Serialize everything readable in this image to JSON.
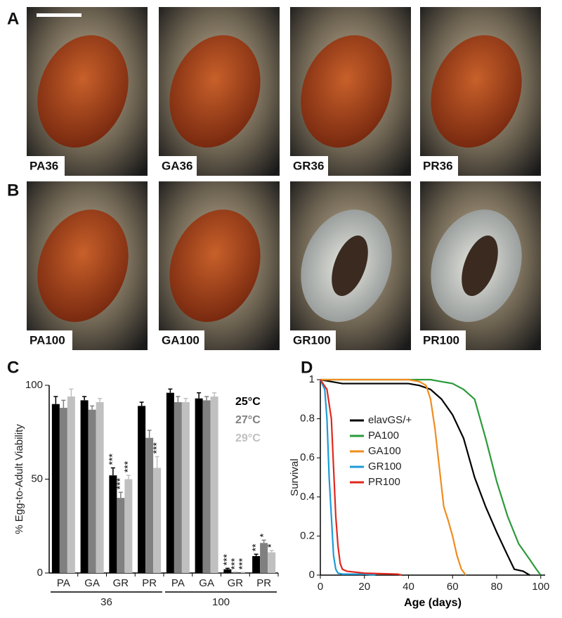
{
  "panel_labels": [
    "A",
    "B",
    "C",
    "D"
  ],
  "photos": [
    {
      "label": "PA36"
    },
    {
      "label": "GA36"
    },
    {
      "label": "GR36"
    },
    {
      "label": "PR36"
    },
    {
      "label": "PA100"
    },
    {
      "label": "GA100"
    },
    {
      "label": "GR100"
    },
    {
      "label": "PR100"
    }
  ],
  "chart_data": [
    {
      "type": "bar",
      "ylabel": "% Egg-to-Adult Viability",
      "categories": [
        "PA",
        "GA",
        "GR",
        "PR",
        "PA",
        "GA",
        "GR",
        "PR"
      ],
      "group_labels": [
        "36",
        "100"
      ],
      "ylim": [
        0,
        100
      ],
      "yticks": [
        0,
        50,
        100
      ],
      "series": [
        {
          "name": "25°C",
          "color": "#000000",
          "values": [
            90,
            92,
            52,
            89,
            96,
            93,
            2,
            9
          ],
          "errors": [
            4,
            2,
            4,
            2,
            2,
            3,
            0.5,
            1
          ],
          "significance": [
            null,
            null,
            "***",
            null,
            null,
            null,
            "***",
            "**"
          ]
        },
        {
          "name": "27°C",
          "color": "#808080",
          "values": [
            88,
            87,
            40,
            72,
            91,
            92,
            0,
            16
          ],
          "errors": [
            4,
            2,
            3,
            4,
            3,
            2,
            0.3,
            1.5
          ],
          "significance": [
            null,
            null,
            "***",
            null,
            null,
            null,
            "***",
            "*"
          ]
        },
        {
          "name": "29°C",
          "color": "#c0c0c0",
          "values": [
            94,
            91,
            50,
            56,
            91,
            94,
            0,
            11
          ],
          "errors": [
            4,
            2,
            2,
            6,
            2,
            2,
            0.3,
            1
          ],
          "significance": [
            null,
            null,
            "***",
            "***",
            null,
            null,
            "***",
            "*"
          ]
        }
      ]
    },
    {
      "type": "line",
      "xlabel": "Age (days)",
      "ylabel": "Survival",
      "xlim": [
        0,
        102
      ],
      "ylim": [
        0,
        1
      ],
      "xticks": [
        0,
        20,
        40,
        60,
        80,
        100
      ],
      "yticks": [
        0,
        0.2,
        0.4,
        0.6,
        0.8,
        1
      ],
      "series": [
        {
          "name": "elavGS/+",
          "color": "#000000",
          "x": [
            0,
            5,
            10,
            20,
            30,
            40,
            45,
            50,
            55,
            60,
            65,
            70,
            75,
            80,
            85,
            88,
            92,
            95
          ],
          "values": [
            1,
            0.99,
            0.98,
            0.98,
            0.98,
            0.98,
            0.97,
            0.95,
            0.9,
            0.82,
            0.7,
            0.5,
            0.35,
            0.22,
            0.1,
            0.03,
            0.02,
            0
          ]
        },
        {
          "name": "PA100",
          "color": "#2a9a3a",
          "x": [
            0,
            40,
            50,
            55,
            60,
            65,
            70,
            72,
            75,
            80,
            85,
            90,
            95,
            98,
            100
          ],
          "values": [
            1,
            1,
            1,
            0.99,
            0.98,
            0.95,
            0.9,
            0.82,
            0.7,
            0.48,
            0.3,
            0.16,
            0.08,
            0.03,
            0
          ]
        },
        {
          "name": "GA100",
          "color": "#f08c1e",
          "x": [
            0,
            40,
            45,
            48,
            50,
            52,
            54,
            56,
            58,
            60,
            62,
            64,
            66
          ],
          "values": [
            1,
            1,
            0.99,
            0.97,
            0.9,
            0.75,
            0.55,
            0.35,
            0.28,
            0.2,
            0.1,
            0.03,
            0
          ]
        },
        {
          "name": "GR100",
          "color": "#1e9bd7",
          "x": [
            0,
            2,
            3,
            4,
            5,
            6,
            7,
            8,
            10,
            20,
            25
          ],
          "values": [
            1,
            0.95,
            0.8,
            0.5,
            0.3,
            0.1,
            0.03,
            0.01,
            0.005,
            0.005,
            0
          ]
        },
        {
          "name": "PR100",
          "color": "#e0281e",
          "x": [
            0,
            3,
            5,
            6,
            7,
            8,
            9,
            10,
            12,
            20,
            35,
            37
          ],
          "values": [
            1,
            0.95,
            0.8,
            0.55,
            0.3,
            0.15,
            0.06,
            0.03,
            0.02,
            0.01,
            0.005,
            0
          ]
        }
      ]
    }
  ]
}
